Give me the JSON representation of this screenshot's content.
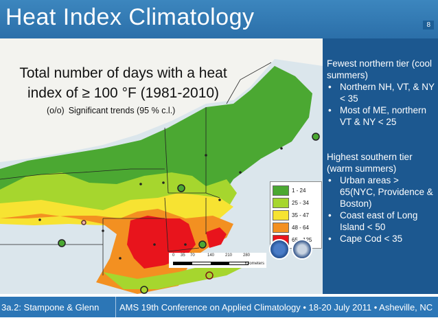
{
  "slide": {
    "title": "Heat Index Climatology",
    "page_number": "8"
  },
  "map": {
    "heading": "Total number of days with a heat index of ≥ 100 °F (1981-2010)",
    "significance_symbols": "(o/o)",
    "significance_note": "Significant trends (95 % c.l.)",
    "legend": [
      {
        "label": "1 - 24",
        "color": "#4ba832"
      },
      {
        "label": "25 - 34",
        "color": "#a6d62e"
      },
      {
        "label": "35 - 47",
        "color": "#f7e332"
      },
      {
        "label": "48 - 64",
        "color": "#f39021"
      },
      {
        "label": "65 - 125",
        "color": "#e8141c"
      }
    ],
    "scale_ticks": [
      "0",
      "35",
      "70",
      "140",
      "210",
      "280"
    ],
    "scale_unit": "Kilometers"
  },
  "notes": {
    "northern": {
      "heading": "Fewest northern tier (cool summers)",
      "bullets": [
        "Northern NH, VT, & NY < 35",
        "Most of ME, northern VT & NY < 25"
      ]
    },
    "southern": {
      "heading": "Highest southern tier (warm summers)",
      "bullets": [
        "Urban areas > 65(NYC, Providence & Boston)",
        "Coast east of Long Island < 50",
        "Cape Cod < 35"
      ]
    }
  },
  "footer": {
    "left": "3a.2: Stampone & Glenn",
    "right": "AMS 19th Conference on Applied Climatology • 18-20 July 2011 • Asheville, NC"
  }
}
